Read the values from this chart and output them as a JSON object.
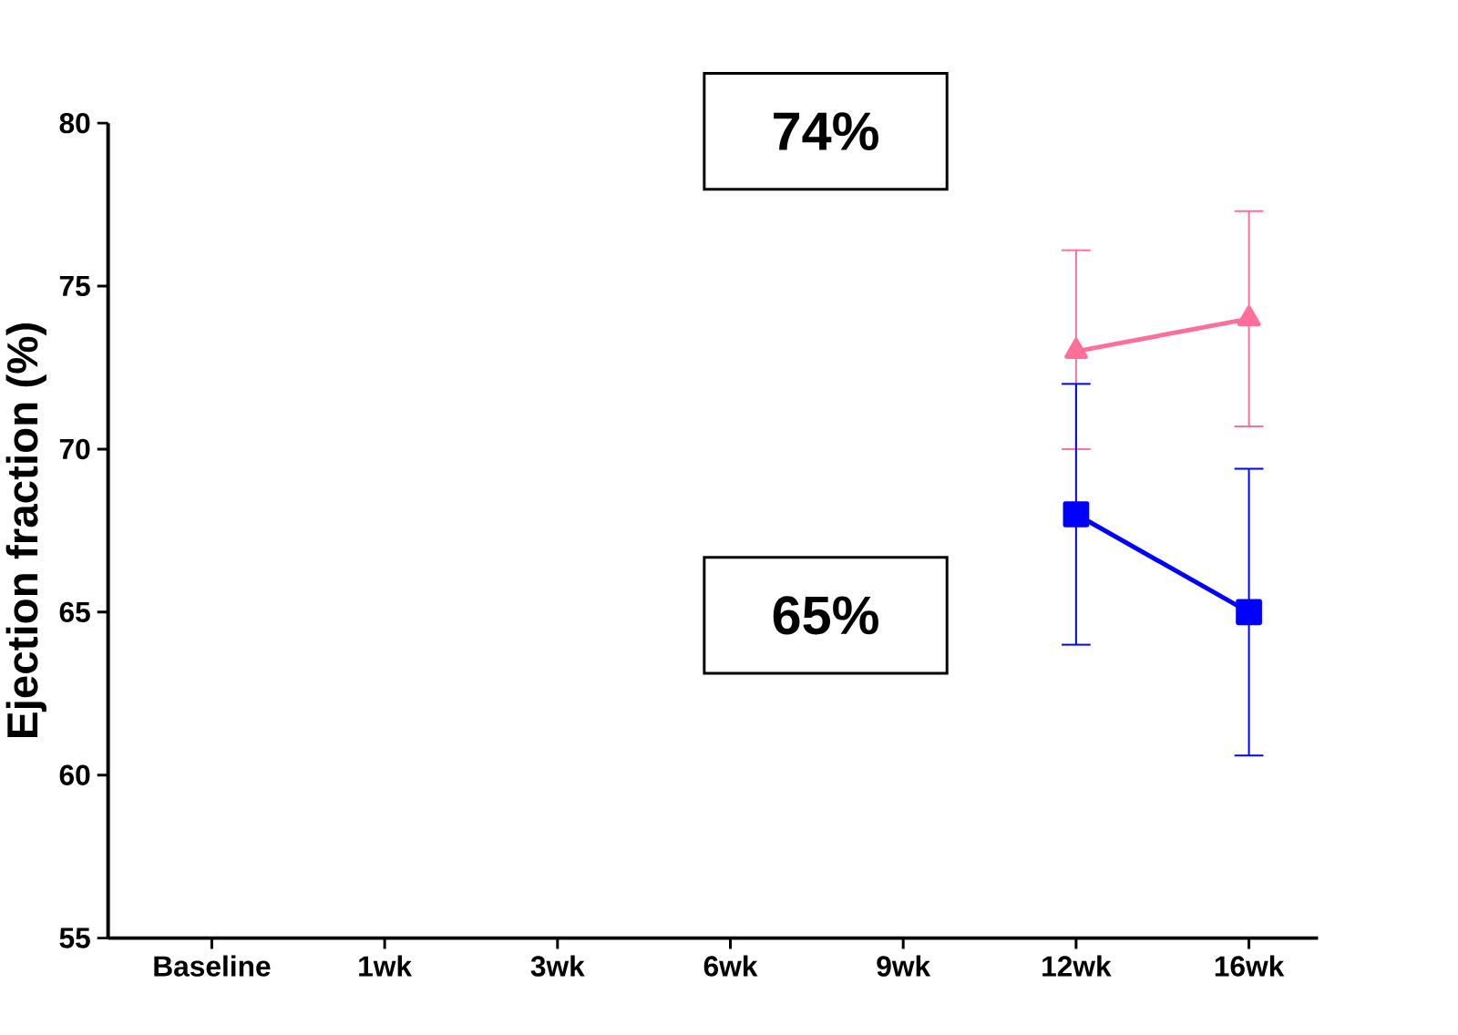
{
  "chart_data": {
    "type": "line",
    "ylabel": "Ejection fraction (%)",
    "categories": [
      "Baseline",
      "1wk",
      "3wk",
      "6wk",
      "9wk",
      "12wk",
      "16wk"
    ],
    "ylim": [
      55,
      80
    ],
    "yticks": [
      55,
      60,
      65,
      70,
      75,
      80
    ],
    "grid": false,
    "series": [
      {
        "color": "#ff6f9a",
        "marker": "triangle",
        "values": [
          null,
          null,
          null,
          null,
          null,
          73.0,
          74.0
        ],
        "errors": [
          null,
          null,
          null,
          null,
          null,
          [
            70.0,
            76.1
          ],
          [
            70.7,
            77.3
          ]
        ]
      },
      {
        "color": "#0000ff",
        "marker": "square",
        "values": [
          null,
          null,
          null,
          null,
          null,
          68.0,
          65.0
        ],
        "errors": [
          null,
          null,
          null,
          null,
          null,
          [
            64.0,
            72.0
          ],
          [
            60.6,
            69.4
          ]
        ]
      }
    ],
    "annotations": [
      "74%",
      "65%"
    ]
  }
}
